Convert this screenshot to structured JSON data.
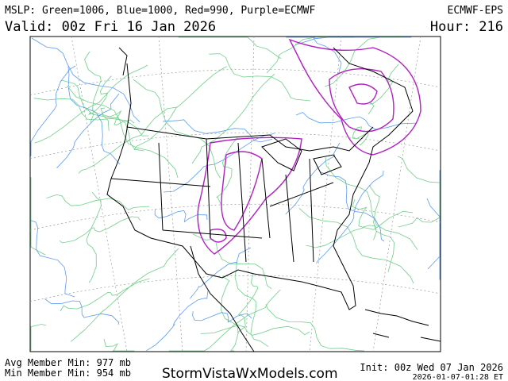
{
  "header": {
    "legend": "MSLP: Green=1006, Blue=1000, Red=990, Purple=ECMWF",
    "model": "ECMWF-EPS",
    "valid": "Valid: 00z Fri 16 Jan 2026",
    "hour": "Hour: 216"
  },
  "footer": {
    "avg_min": "Avg Member Min: 977 mb",
    "min_min": "Min Member Min: 954 mb",
    "site": "StormVistaWxModels.com",
    "init": "Init: 00z Wed 07 Jan 2026",
    "timestamp": "2026-01-07-01:28 ET"
  }
}
